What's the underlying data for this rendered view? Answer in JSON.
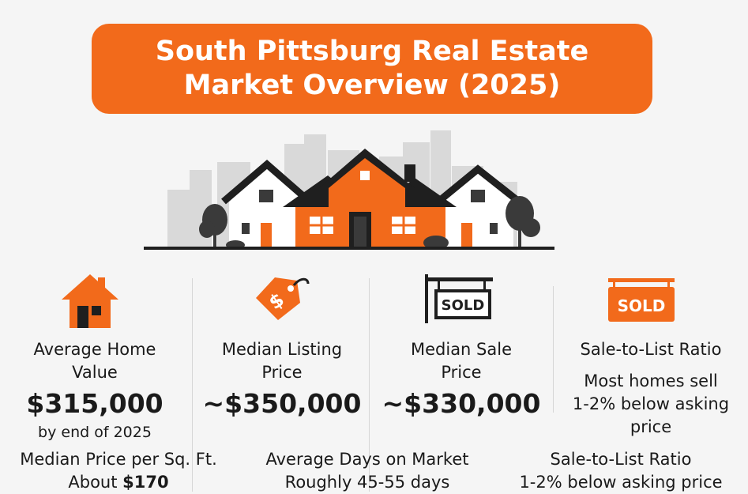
{
  "header": {
    "title_line1": "South Pittsburg Real Estate",
    "title_line2": "Market Overview (2025)"
  },
  "colors": {
    "accent": "#f26a1b",
    "dark": "#1f1f1f",
    "skyline": "#d9d9d9"
  },
  "metrics": [
    {
      "icon": "house-icon",
      "label_line1": "Average Home",
      "label_line2": "Value",
      "value": "$315,000",
      "note": "by end of 2025"
    },
    {
      "icon": "price-tag-icon",
      "tag_symbol": "$",
      "label_line1": "Median Listing",
      "label_line2": "Price",
      "value": "~$350,000"
    },
    {
      "icon": "sold-sign-icon",
      "sign_text": "SOLD",
      "label_line1": "Median Sale",
      "label_line2": "Price",
      "value": "~$330,000"
    },
    {
      "icon": "sold-banner-icon",
      "sign_text": "SOLD",
      "label": "Sale-to-List Ratio",
      "desc_line1": "Most homes sell",
      "desc_line2": "1-2% below asking",
      "desc_line3": "price"
    }
  ],
  "footer": [
    {
      "label": "Median Price per Sq. Ft.",
      "value_prefix": "About ",
      "value": "$170"
    },
    {
      "label": "Average Days on Market",
      "value": "Roughly 45-55 days"
    },
    {
      "label": "Sale-to-List Ratio",
      "value": "1-2% below asking price"
    }
  ]
}
